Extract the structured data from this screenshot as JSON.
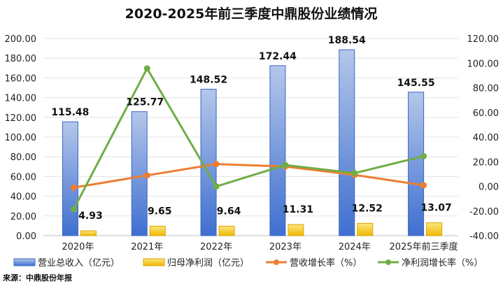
{
  "chart_data": {
    "type": "bar+line",
    "title": "2020-2025年前三季度中鼎股份业绩情况",
    "categories": [
      "2020年",
      "2021年",
      "2022年",
      "2023年",
      "2024年",
      "2025年前三季度"
    ],
    "left_axis": {
      "min": 0,
      "max": 200,
      "step": 20,
      "ticks": [
        "0.00",
        "20.00",
        "40.00",
        "60.00",
        "80.00",
        "100.00",
        "120.00",
        "140.00",
        "160.00",
        "180.00",
        "200.00"
      ]
    },
    "right_axis": {
      "min": -40,
      "max": 120,
      "step": 20,
      "ticks": [
        "-40.00",
        "-20.00",
        "0.00",
        "20.00",
        "40.00",
        "60.00",
        "80.00",
        "100.00",
        "120.00"
      ]
    },
    "grid": true,
    "legend_position": "bottom",
    "series": [
      {
        "name": "营业总收入（亿元）",
        "type": "bar",
        "axis": "left",
        "color": "#4472C4",
        "values": [
          115.48,
          125.77,
          148.52,
          172.44,
          188.54,
          145.55
        ],
        "labels": [
          "115.48",
          "125.77",
          "148.52",
          "172.44",
          "188.54",
          "145.55"
        ]
      },
      {
        "name": "归母净利润（亿元）",
        "type": "bar",
        "axis": "left",
        "color": "#F2C200",
        "values": [
          4.93,
          9.65,
          9.64,
          11.31,
          12.52,
          13.07
        ],
        "labels": [
          "4.93",
          "9.65",
          "9.64",
          "11.31",
          "12.52",
          "13.07"
        ]
      },
      {
        "name": "营收增长率（%）",
        "type": "line",
        "axis": "right",
        "color": "#ED7D31",
        "values": [
          -1.0,
          8.9,
          18.1,
          16.1,
          9.3,
          0.9
        ]
      },
      {
        "name": "净利润增长率（%）",
        "type": "line",
        "axis": "right",
        "color": "#70AD47",
        "values": [
          -18.5,
          95.7,
          -0.1,
          17.3,
          10.7,
          24.5
        ]
      }
    ],
    "source": "来源：中鼎股份年报"
  }
}
